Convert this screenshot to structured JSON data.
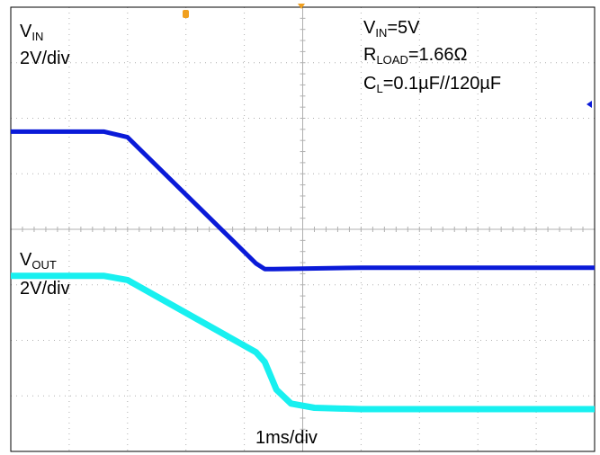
{
  "colors": {
    "vin": "#0a1ad8",
    "vout": "#18f0f0",
    "grid": "#b0b0b0",
    "frame": "#000000",
    "marker": "#f0a020"
  },
  "labels": {
    "vin_main": "V",
    "vin_sub": "IN",
    "vin_div": "2V/div",
    "vout_main": "V",
    "vout_sub": "OUT",
    "vout_div": "2V/div",
    "cond1_main": "V",
    "cond1_sub": "IN",
    "cond1_rest": "=5V",
    "cond2_main": "R",
    "cond2_sub": "LOAD",
    "cond2_rest": "=1.66Ω",
    "cond3_main": "C",
    "cond3_sub": "L",
    "cond3_rest": "=0.1µF//120µF",
    "timebase": "1ms/div"
  },
  "chart_data": {
    "type": "line",
    "x_unit": "ms",
    "xlim": [
      0,
      10
    ],
    "grid": true,
    "divisions": {
      "x": 10,
      "y": 8
    },
    "series": [
      {
        "name": "VIN",
        "volts_per_div": 2,
        "x": [
          0,
          1.6,
          2.0,
          4.2,
          4.35,
          4.5,
          6,
          10
        ],
        "y": [
          5.0,
          5.0,
          4.8,
          0.25,
          0.05,
          0.05,
          0.1,
          0.1
        ]
      },
      {
        "name": "VOUT",
        "volts_per_div": 2,
        "x": [
          0,
          1.6,
          2.0,
          4.2,
          4.35,
          4.55,
          4.8,
          5.2,
          6,
          10
        ],
        "y": [
          4.8,
          4.8,
          4.65,
          2.05,
          1.7,
          0.7,
          0.2,
          0.05,
          0.0,
          0.0
        ]
      }
    ]
  }
}
